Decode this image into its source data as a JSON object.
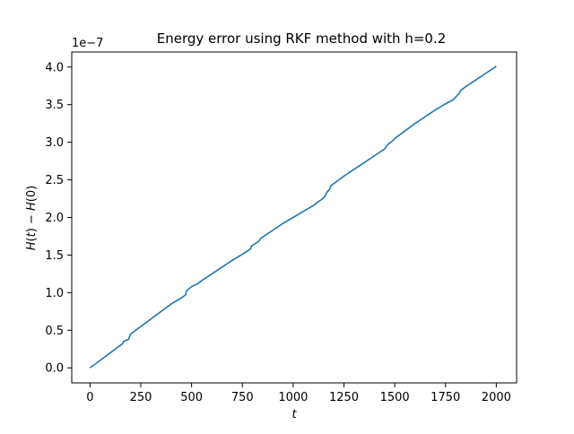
{
  "chart_data": {
    "type": "line",
    "title": "Energy error using RKF method with h=0.2",
    "xlabel": "t",
    "ylabel": "H(t) − H(0)",
    "ylabel_parts": {
      "h_var": "H",
      "t_var": "t",
      "zero": "0",
      "minus": "−"
    },
    "offset_text": "1e−7",
    "xlim": [
      -90,
      2100
    ],
    "ylim": [
      -0.2,
      4.2
    ],
    "x_ticks": [
      0,
      250,
      500,
      750,
      1000,
      1250,
      1500,
      1750,
      2000
    ],
    "x_tick_labels": [
      "0",
      "250",
      "500",
      "750",
      "1000",
      "1250",
      "1500",
      "1750",
      "2000"
    ],
    "y_ticks": [
      0.0,
      0.5,
      1.0,
      1.5,
      2.0,
      2.5,
      3.0,
      3.5,
      4.0
    ],
    "y_tick_labels": [
      "0.0",
      "0.5",
      "1.0",
      "1.5",
      "2.0",
      "2.5",
      "3.0",
      "3.5",
      "4.0"
    ],
    "grid": false,
    "legend": "none",
    "line_color": "#1f77b4",
    "series": [
      {
        "x": [
          0,
          50,
          100,
          150,
          160,
          165,
          190,
          195,
          200,
          250,
          300,
          350,
          400,
          450,
          470,
          475,
          490,
          500,
          530,
          550,
          600,
          650,
          700,
          750,
          790,
          795,
          830,
          840,
          850,
          900,
          950,
          1000,
          1050,
          1100,
          1150,
          1160,
          1165,
          1180,
          1185,
          1200,
          1250,
          1300,
          1350,
          1400,
          1450,
          1460,
          1470,
          1490,
          1500,
          1550,
          1600,
          1650,
          1700,
          1750,
          1790,
          1800,
          1820,
          1825,
          1850,
          1900,
          1950,
          2000
        ],
        "y": [
          0.0,
          0.1,
          0.2,
          0.3,
          0.32,
          0.35,
          0.38,
          0.42,
          0.45,
          0.55,
          0.65,
          0.75,
          0.85,
          0.93,
          0.97,
          1.02,
          1.06,
          1.08,
          1.12,
          1.16,
          1.25,
          1.34,
          1.43,
          1.51,
          1.58,
          1.62,
          1.68,
          1.72,
          1.74,
          1.83,
          1.92,
          2.0,
          2.08,
          2.16,
          2.26,
          2.3,
          2.33,
          2.38,
          2.42,
          2.45,
          2.55,
          2.64,
          2.73,
          2.82,
          2.91,
          2.95,
          2.98,
          3.02,
          3.05,
          3.15,
          3.25,
          3.34,
          3.43,
          3.51,
          3.57,
          3.6,
          3.66,
          3.69,
          3.74,
          3.83,
          3.92,
          4.01
        ]
      }
    ]
  }
}
